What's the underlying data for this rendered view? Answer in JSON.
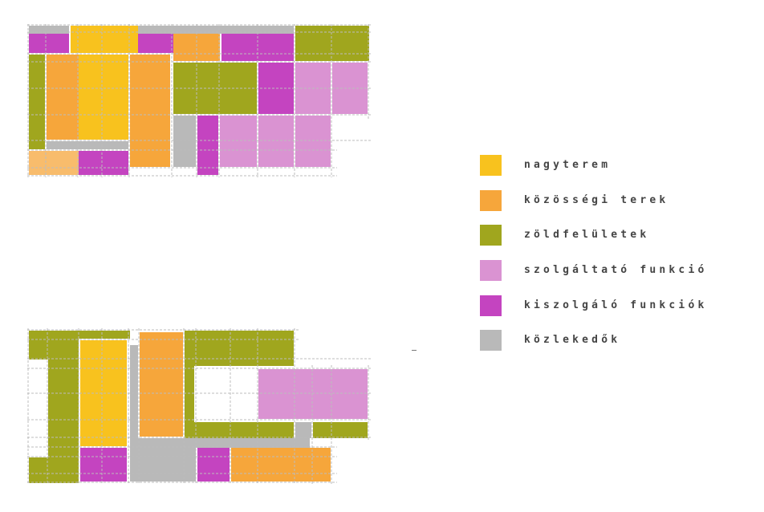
{
  "legend": {
    "items": [
      {
        "key": "nagyterem",
        "label": "nagyterem",
        "color": "#f8c21e"
      },
      {
        "key": "kozossegi",
        "label": "közösségi terek",
        "color": "#f6a63b"
      },
      {
        "key": "zold",
        "label": "zöldfelületek",
        "color": "#a0a61e"
      },
      {
        "key": "szolgaltato",
        "label": "szolgáltató funkció",
        "color": "#da93d2"
      },
      {
        "key": "kiszolgalo",
        "label": "kiszolgáló funkciók",
        "color": "#c444c0"
      },
      {
        "key": "kozlekedok",
        "label": "közlekedők",
        "color": "#b9b9b9"
      }
    ]
  }
}
